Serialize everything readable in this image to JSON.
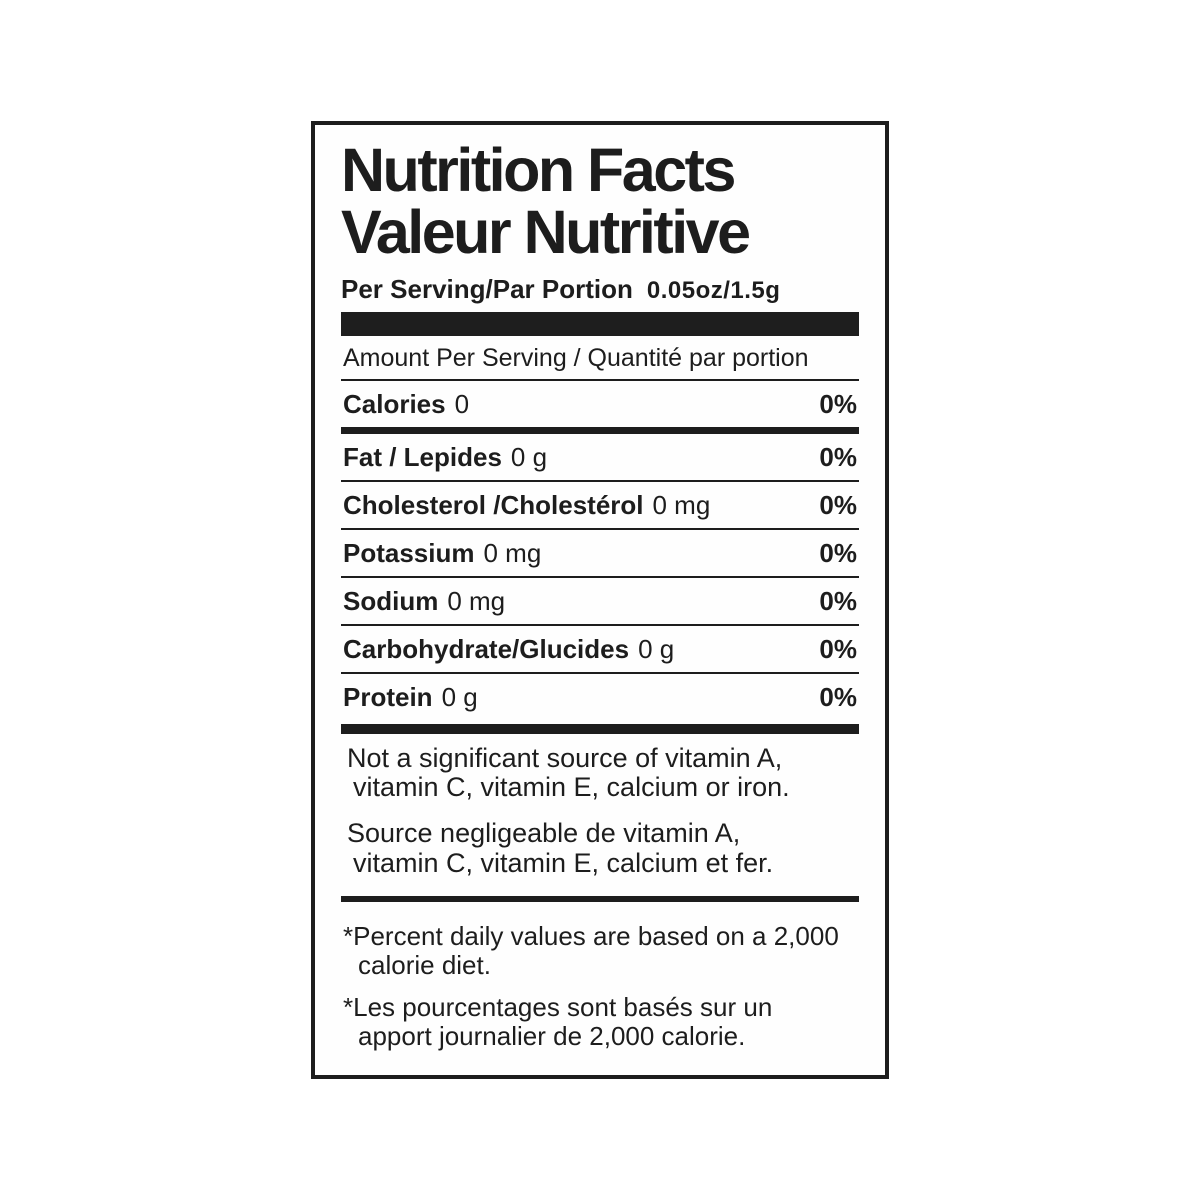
{
  "label": {
    "title_en": "Nutrition Facts",
    "title_fr": "Valeur Nutritive",
    "serving_label": "Per Serving/Par Portion",
    "serving_amount": "0.05oz/1.5g",
    "amount_header": "Amount Per Serving / Quantité par portion"
  },
  "rows": [
    {
      "name": "Calories",
      "value": "0",
      "dv": "0%"
    },
    {
      "name": "Fat / Lepides",
      "value": "0 g",
      "dv": "0%"
    },
    {
      "name": "Cholesterol /Cholestérol",
      "value": "0 mg",
      "dv": "0%"
    },
    {
      "name": "Potassium",
      "value": "0 mg",
      "dv": "0%"
    },
    {
      "name": "Sodium",
      "value": "0 mg",
      "dv": "0%"
    },
    {
      "name": "Carbohydrate/Glucides",
      "value": "0 g",
      "dv": "0%"
    },
    {
      "name": "Protein",
      "value": "0 g",
      "dv": "0%"
    }
  ],
  "notes": {
    "en": [
      "Not a significant source of vitamin A,",
      "vitamin C, vitamin E, calcium or iron."
    ],
    "fr": [
      "Source negligeable de vitamin A,",
      "vitamin C, vitamin E, calcium et fer."
    ]
  },
  "footnotes": {
    "en": [
      "*Percent daily values are based on a 2,000",
      "calorie diet."
    ],
    "fr": [
      "*Les pourcentages sont basés sur un",
      "apport journalier de 2,000 calorie."
    ]
  },
  "colors": {
    "ink": "#1d1d1d",
    "background": "#ffffff"
  }
}
